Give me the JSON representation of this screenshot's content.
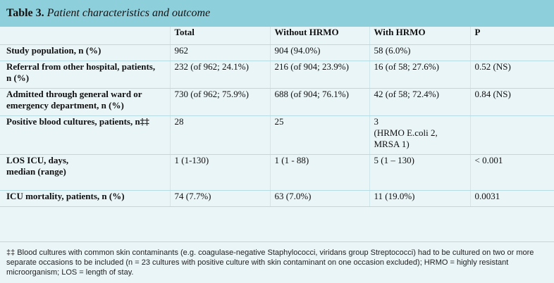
{
  "table": {
    "label": "Table 3.",
    "title": "Patient characteristics and outcome",
    "headers": [
      "",
      "Total",
      "Without HRMO",
      "With HRMO",
      "P"
    ],
    "rows": [
      {
        "label": [
          "Study population, n (%)"
        ],
        "total": [
          "962"
        ],
        "without": [
          "904 (94.0%)"
        ],
        "with": [
          "58 (6.0%)"
        ],
        "p": [
          ""
        ]
      },
      {
        "label": [
          "Referral from other hospital, patients,",
          "n (%)"
        ],
        "total": [
          "232 (of 962; 24.1%)"
        ],
        "without": [
          "216 (of 904; 23.9%)"
        ],
        "with": [
          "16 (of 58; 27.6%)"
        ],
        "p": [
          "0.52 (NS)"
        ]
      },
      {
        "label": [
          "Admitted through general ward or",
          "emergency department, n (%)"
        ],
        "total": [
          "730 (of 962; 75.9%)"
        ],
        "without": [
          "688 (of 904; 76.1%)"
        ],
        "with": [
          "42 (of 58; 72.4%)"
        ],
        "p": [
          "0.84 (NS)"
        ]
      },
      {
        "label": [
          "Positive blood cultures, patients, n‡‡"
        ],
        "total": [
          "28"
        ],
        "without": [
          "25"
        ],
        "with": [
          "3",
          "(HRMO E.coli 2,",
          "MRSA 1)"
        ],
        "p": [
          ""
        ]
      },
      {
        "label": [
          "LOS ICU, days,",
          "median (range)"
        ],
        "total": [
          "1 (1-130)"
        ],
        "without": [
          "1 (1 - 88)"
        ],
        "with": [
          "5 (1 – 130)"
        ],
        "p": [
          "< 0.001"
        ]
      },
      {
        "label": [
          "ICU mortality, patients, n (%)"
        ],
        "total": [
          "74 (7.7%)"
        ],
        "without": [
          "63 (7.0%)"
        ],
        "with": [
          "11 (19.0%)"
        ],
        "p": [
          "0.0031"
        ]
      }
    ],
    "footnote": "‡‡ Blood cultures with common skin contaminants (e.g. coagulase-negative Staphylococci, viridans group Streptococci) had to be cultured on two or more separate occasions to be included (n = 23 cultures with positive culture with skin contaminant on one occasion excluded); HRMO = highly resistant microorganism; LOS = length of stay."
  },
  "colors": {
    "title_bar": "#8ecfdc",
    "table_bg": "#eaf5f7",
    "rule": "#b6dbe3"
  }
}
